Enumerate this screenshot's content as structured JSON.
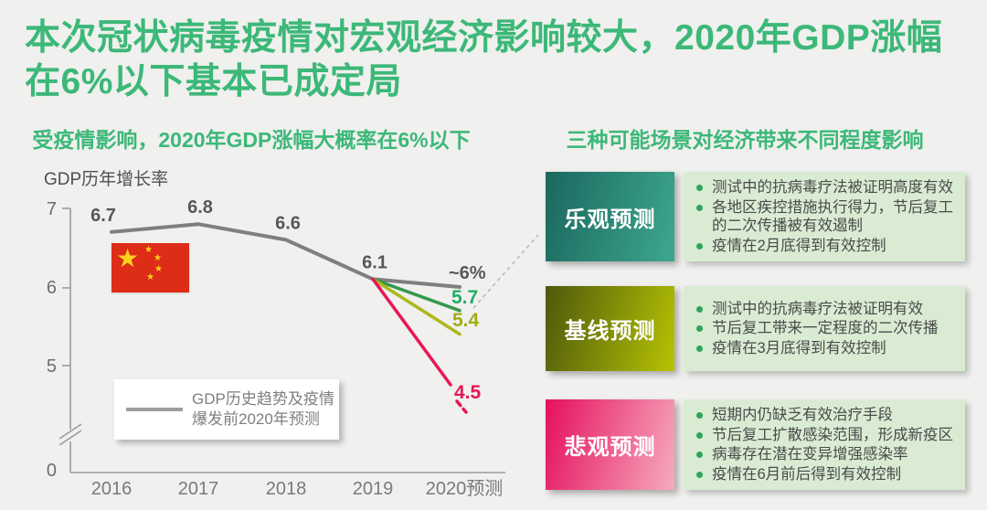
{
  "title": "本次冠状病毒疫情对宏观经济影响较大，2020年GDP涨幅在6%以下基本已成定局",
  "colors": {
    "headline_green": "#3cb878",
    "background": "#f0f0ee",
    "panel_green": "#d9ecd3",
    "bullet_dot": "#2fa45c",
    "axis_gray": "#9a9a9a"
  },
  "left_section": {
    "subtitle": "受疫情影响，2020年GDP涨幅大概率在6%以下"
  },
  "right_section": {
    "subtitle": "三种可能场景对经济带来不同程度影响"
  },
  "chart_data": {
    "type": "line",
    "title": "GDP历年增长率",
    "x_categories": [
      "2016",
      "2017",
      "2018",
      "2019",
      "2020预测"
    ],
    "yticks": [
      "7",
      "6",
      "5",
      "0"
    ],
    "axis_break_between": [
      "0",
      "5"
    ],
    "grid": false,
    "series": [
      {
        "name": "GDP历史趋势及疫情爆发前2020年预测",
        "color": "#7f7f7f",
        "values": [
          6.7,
          6.8,
          6.6,
          6.1,
          6.0
        ],
        "point_labels": [
          "6.7",
          "6.8",
          "6.6",
          "6.1",
          "~6%"
        ],
        "label_color": "#57575a"
      },
      {
        "name": "乐观预测",
        "color": "#35984a",
        "values": [
          null,
          null,
          null,
          6.1,
          5.7
        ],
        "end_label": "5.7",
        "label_color": "#1fae68"
      },
      {
        "name": "基线预测",
        "color": "#adb71c",
        "values": [
          null,
          null,
          null,
          6.1,
          5.4
        ],
        "end_label": "5.4",
        "label_color": "#a2ac12"
      },
      {
        "name": "悲观预测",
        "color": "#e81659",
        "values": [
          null,
          null,
          null,
          6.1,
          4.5
        ],
        "end_label": "4.5",
        "label_color": "#e81659",
        "dashed_tail": true
      }
    ],
    "legend": {
      "label": "GDP历史趋势及疫情爆发前2020年预测",
      "position": "bottom-left"
    },
    "flag_annotation": "china-flag"
  },
  "scenarios": [
    {
      "label": "乐观预测",
      "colors": [
        "#1a685e",
        "#3ea78f"
      ],
      "bullets": [
        "测试中的抗病毒疗法被证明高度有效",
        "各地区疾控措施执行得力，节后复工的二次传播被有效遏制",
        "疫情在2月底得到有效控制"
      ]
    },
    {
      "label": "基线预测",
      "colors": [
        "#4e580c",
        "#b6c303"
      ],
      "bullets": [
        "测试中的抗病毒疗法被证明有效",
        "节后复工带来一定程度的二次传播",
        "疫情在3月底得到有效控制"
      ]
    },
    {
      "label": "悲观预测",
      "colors": [
        "#e50f5e",
        "#f6abbe"
      ],
      "bullets": [
        "短期内仍缺乏有效治疗手段",
        "节后复工扩散感染范围，形成新疫区",
        "病毒存在潜在变异增强感染率",
        "疫情在6月前后得到有效控制"
      ]
    }
  ]
}
